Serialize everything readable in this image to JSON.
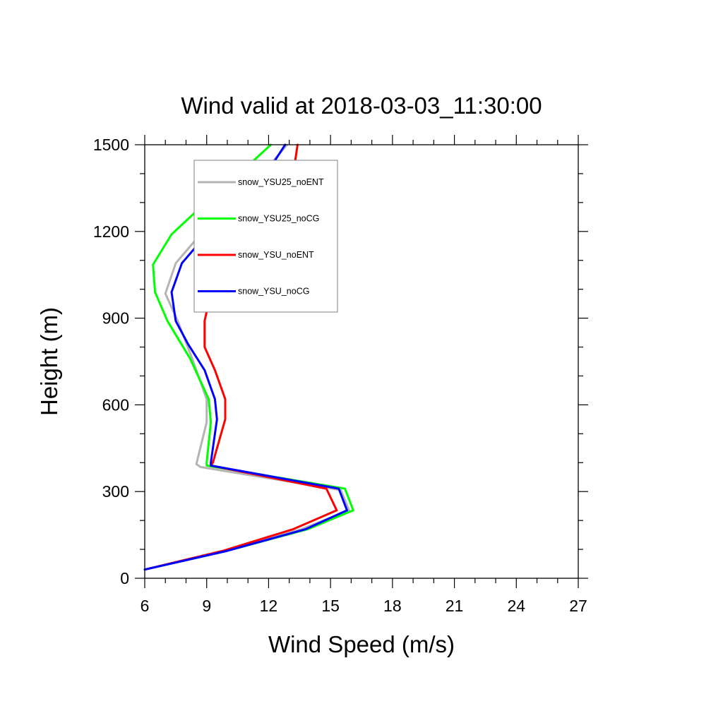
{
  "chart_data": {
    "type": "line",
    "title": "Wind valid at 2018-03-03_11:30:00",
    "xlabel": "Wind Speed (m/s)",
    "ylabel": "Height (m)",
    "xlim": [
      6,
      27
    ],
    "ylim": [
      0,
      1500
    ],
    "xticks": [
      6,
      9,
      12,
      15,
      18,
      21,
      24,
      27
    ],
    "yticks": [
      0,
      300,
      600,
      900,
      1200,
      1500
    ],
    "xtick_labels": [
      "6",
      "9",
      "12",
      "15",
      "18",
      "21",
      "24",
      "27"
    ],
    "ytick_labels": [
      "0",
      "300",
      "600",
      "900",
      "1200",
      "1500"
    ],
    "grid": false,
    "legend_position": "top-left",
    "series": [
      {
        "name": "snow_YSU25_noENT",
        "color": "#b4b4b4",
        "points": [
          [
            6.0,
            30
          ],
          [
            9.9,
            95
          ],
          [
            13.6,
            170
          ],
          [
            15.9,
            235
          ],
          [
            15.5,
            305
          ],
          [
            8.7,
            385
          ],
          [
            8.5,
            395
          ],
          [
            9.0,
            540
          ],
          [
            9.0,
            620
          ],
          [
            8.3,
            760
          ],
          [
            7.6,
            890
          ],
          [
            7.0,
            985
          ],
          [
            7.5,
            1090
          ],
          [
            8.7,
            1190
          ],
          [
            10.2,
            1290
          ],
          [
            11.7,
            1400
          ],
          [
            12.9,
            1500
          ]
        ]
      },
      {
        "name": "snow_YSU25_noCG",
        "color": "#00ff00",
        "points": [
          [
            6.0,
            30
          ],
          [
            10.0,
            95
          ],
          [
            13.9,
            170
          ],
          [
            16.1,
            235
          ],
          [
            15.7,
            310
          ],
          [
            9.0,
            390
          ],
          [
            9.0,
            400
          ],
          [
            9.2,
            540
          ],
          [
            9.1,
            620
          ],
          [
            8.2,
            760
          ],
          [
            7.1,
            890
          ],
          [
            6.5,
            990
          ],
          [
            6.4,
            1085
          ],
          [
            7.3,
            1190
          ],
          [
            8.8,
            1290
          ],
          [
            10.6,
            1400
          ],
          [
            12.1,
            1500
          ]
        ]
      },
      {
        "name": "snow_YSU_noENT",
        "color": "#ff0000",
        "points": [
          [
            6.0,
            30
          ],
          [
            9.8,
            95
          ],
          [
            13.2,
            170
          ],
          [
            15.3,
            235
          ],
          [
            14.8,
            310
          ],
          [
            9.2,
            390
          ],
          [
            9.3,
            400
          ],
          [
            9.9,
            550
          ],
          [
            9.9,
            620
          ],
          [
            9.4,
            720
          ],
          [
            8.9,
            800
          ],
          [
            8.9,
            890
          ],
          [
            9.2,
            990
          ],
          [
            9.9,
            1090
          ],
          [
            11.2,
            1190
          ],
          [
            12.4,
            1290
          ],
          [
            13.2,
            1400
          ],
          [
            13.4,
            1500
          ]
        ]
      },
      {
        "name": "snow_YSU_noCG",
        "color": "#0000ff",
        "points": [
          [
            6.0,
            30
          ],
          [
            10.0,
            95
          ],
          [
            13.8,
            170
          ],
          [
            15.8,
            235
          ],
          [
            15.4,
            310
          ],
          [
            9.2,
            390
          ],
          [
            9.2,
            400
          ],
          [
            9.5,
            550
          ],
          [
            9.4,
            620
          ],
          [
            8.9,
            720
          ],
          [
            8.1,
            810
          ],
          [
            7.5,
            890
          ],
          [
            7.3,
            990
          ],
          [
            7.8,
            1090
          ],
          [
            9.0,
            1190
          ],
          [
            10.4,
            1290
          ],
          [
            11.9,
            1400
          ],
          [
            12.8,
            1500
          ]
        ]
      }
    ]
  }
}
